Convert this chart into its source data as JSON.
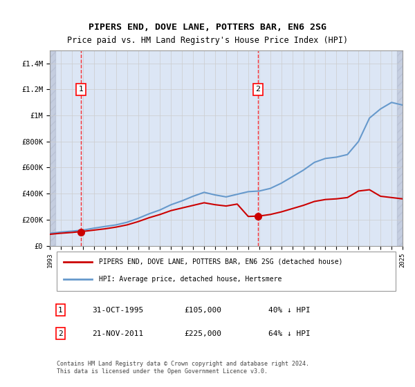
{
  "title": "PIPERS END, DOVE LANE, POTTERS BAR, EN6 2SG",
  "subtitle": "Price paid vs. HM Land Registry's House Price Index (HPI)",
  "hpi_years": [
    1993,
    1994,
    1995,
    1996,
    1997,
    1998,
    1999,
    2000,
    2001,
    2002,
    2003,
    2004,
    2005,
    2006,
    2007,
    2008,
    2009,
    2010,
    2011,
    2012,
    2013,
    2014,
    2015,
    2016,
    2017,
    2018,
    2019,
    2020,
    2021,
    2022,
    2023,
    2024,
    2025
  ],
  "hpi_values": [
    95000,
    105000,
    112000,
    120000,
    135000,
    148000,
    160000,
    180000,
    210000,
    245000,
    275000,
    315000,
    345000,
    380000,
    410000,
    390000,
    375000,
    395000,
    415000,
    420000,
    440000,
    480000,
    530000,
    580000,
    640000,
    670000,
    680000,
    700000,
    800000,
    980000,
    1050000,
    1100000,
    1080000
  ],
  "sale_dates": [
    "1995-10-31",
    "2011-11-21"
  ],
  "sale_years": [
    1995.83,
    2011.89
  ],
  "sale_values": [
    105000,
    225000
  ],
  "sale_labels": [
    "1",
    "2"
  ],
  "vline_x": [
    1995.83,
    2011.89
  ],
  "red_line_color": "#cc0000",
  "blue_line_color": "#6699cc",
  "sale_dot_color": "#cc0000",
  "background_hatch_color": "#d0d8e8",
  "grid_color": "#cccccc",
  "ylim": [
    0,
    1500000
  ],
  "xlim": [
    1993,
    2025
  ],
  "xtick_years": [
    1993,
    1994,
    1995,
    1996,
    1997,
    1998,
    1999,
    2000,
    2001,
    2002,
    2003,
    2004,
    2005,
    2006,
    2007,
    2008,
    2009,
    2010,
    2011,
    2012,
    2013,
    2014,
    2015,
    2016,
    2017,
    2018,
    2019,
    2020,
    2021,
    2022,
    2023,
    2024,
    2025
  ],
  "ytick_values": [
    0,
    200000,
    400000,
    600000,
    800000,
    1000000,
    1200000,
    1400000
  ],
  "ytick_labels": [
    "£0",
    "£200K",
    "£400K",
    "£600K",
    "£800K",
    "£1M",
    "£1.2M",
    "£1.4M"
  ],
  "legend_line1": "PIPERS END, DOVE LANE, POTTERS BAR, EN6 2SG (detached house)",
  "legend_line2": "HPI: Average price, detached house, Hertsmere",
  "table_rows": [
    {
      "label": "1",
      "date": "31-OCT-1995",
      "price": "£105,000",
      "hpi": "40% ↓ HPI"
    },
    {
      "label": "2",
      "date": "21-NOV-2011",
      "price": "£225,000",
      "hpi": "64% ↓ HPI"
    }
  ],
  "footnote": "Contains HM Land Registry data © Crown copyright and database right 2024.\nThis data is licensed under the Open Government Licence v3.0.",
  "title_fontsize": 9.5,
  "subtitle_fontsize": 8.5
}
